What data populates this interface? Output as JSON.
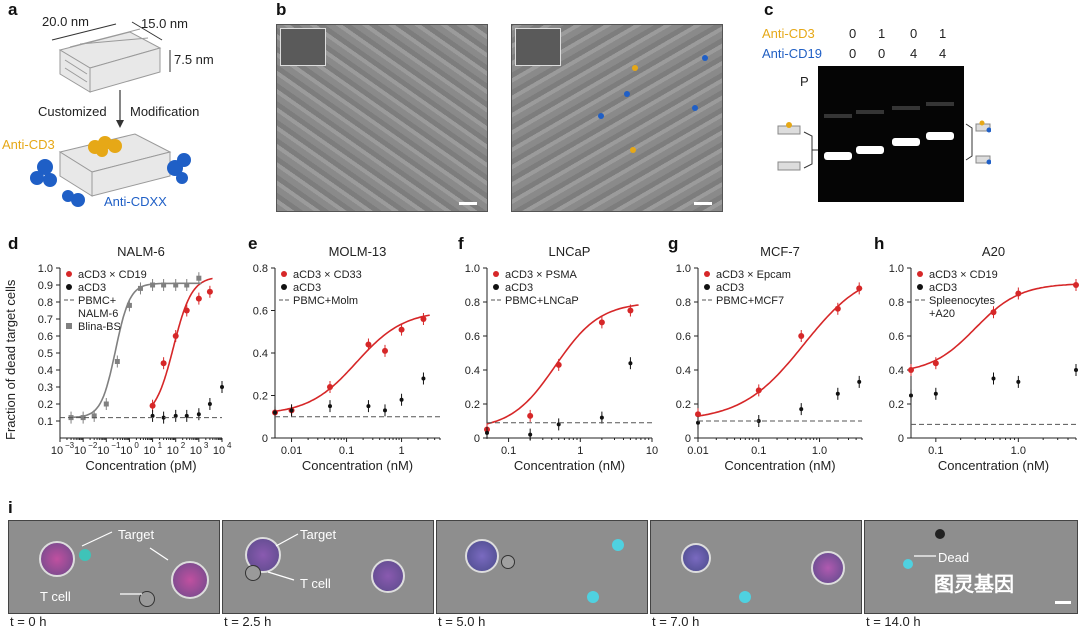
{
  "panel_labels": [
    "a",
    "b",
    "c",
    "d",
    "e",
    "f",
    "g",
    "h",
    "i"
  ],
  "panel_a": {
    "dim1": "20.0 nm",
    "dim2": "15.0 nm",
    "dim3": "7.5 nm",
    "step_left": "Customized",
    "step_right": "Modification",
    "anti_cd3": "Anti-CD3",
    "anti_cdxx": "Anti-CDXX",
    "colors": {
      "cd3": "#e6a817",
      "cdxx": "#1f5fc6"
    }
  },
  "panel_c": {
    "row1_label": "Anti-CD3",
    "row1_values": [
      "0",
      "1",
      "0",
      "1"
    ],
    "row2_label": "Anti-CD19",
    "row2_values": [
      "0",
      "0",
      "4",
      "4"
    ],
    "well_label": "P"
  },
  "y_axis_label": "Fraction of dead target cells",
  "chart_data": [
    {
      "type": "line",
      "title": "NALM-6",
      "xlabel": "Concentration (pM)",
      "xscale": "log",
      "xlim": [
        0.001,
        10000
      ],
      "ylim": [
        0,
        1.0
      ],
      "xticks": [
        "10",
        "10",
        "10",
        "10",
        "10",
        "10",
        "10",
        "10"
      ],
      "xtick_exps": [
        "−3",
        "−2",
        "−1",
        "0",
        "1",
        "2",
        "3",
        "4"
      ],
      "yticks": [
        "0.1",
        "0.2",
        "0.3",
        "0.4",
        "0.5",
        "0.6",
        "0.7",
        "0.8",
        "0.9",
        "1.0"
      ],
      "legend": [
        "aCD3 × CD19",
        "aCD3",
        "PBMC+",
        "NALM-6",
        "Blina-BS"
      ],
      "series": [
        {
          "name": "aCD3 × CD19",
          "color": "#d62728",
          "x": [
            10,
            30,
            100,
            300,
            1000,
            3000
          ],
          "y": [
            0.19,
            0.44,
            0.6,
            0.75,
            0.82,
            0.86
          ],
          "fit": {
            "bottom": 0.12,
            "top": 0.95,
            "ec50": 80,
            "hill": 1.1
          }
        },
        {
          "name": "aCD3",
          "color": "#111111",
          "x": [
            10,
            30,
            100,
            300,
            1000,
            3000,
            10000
          ],
          "y": [
            0.13,
            0.12,
            0.13,
            0.13,
            0.14,
            0.2,
            0.3
          ]
        },
        {
          "name": "Blina-BS",
          "color": "#808080",
          "x": [
            0.003,
            0.01,
            0.03,
            0.1,
            0.3,
            1,
            3,
            10,
            30,
            100,
            300,
            1000
          ],
          "y": [
            0.12,
            0.12,
            0.13,
            0.2,
            0.45,
            0.78,
            0.88,
            0.9,
            0.9,
            0.9,
            0.9,
            0.94
          ],
          "fit": {
            "bottom": 0.12,
            "top": 0.91,
            "ec50": 0.25,
            "hill": 1.4
          }
        },
        {
          "name": "PBMC+ NALM-6",
          "color": "#555555",
          "hline": 0.12
        }
      ]
    },
    {
      "type": "line",
      "title": "MOLM-13",
      "xlabel": "Concentration (nM)",
      "xscale": "log",
      "xlim": [
        0.005,
        5
      ],
      "ylim": [
        0,
        0.8
      ],
      "xticks": [
        "0.01",
        "0.1",
        "1"
      ],
      "yticks": [
        "0",
        "0.2",
        "0.4",
        "0.6",
        "0.8"
      ],
      "legend": [
        "aCD3 × CD33",
        "aCD3",
        "PBMC+Molm"
      ],
      "series": [
        {
          "name": "aCD3 × CD33",
          "color": "#d62728",
          "x": [
            0.005,
            0.01,
            0.05,
            0.25,
            0.5,
            1,
            2.5
          ],
          "y": [
            0.12,
            0.13,
            0.24,
            0.44,
            0.41,
            0.51,
            0.56
          ],
          "fit": {
            "bottom": 0.11,
            "top": 0.6,
            "ec50": 0.15,
            "hill": 1.0
          }
        },
        {
          "name": "aCD3",
          "color": "#111111",
          "x": [
            0.005,
            0.01,
            0.05,
            0.25,
            0.5,
            1,
            2.5
          ],
          "y": [
            0.12,
            0.13,
            0.15,
            0.15,
            0.13,
            0.18,
            0.28
          ]
        },
        {
          "name": "PBMC+Molm",
          "color": "#555555",
          "hline": 0.1
        }
      ]
    },
    {
      "type": "line",
      "title": "LNCaP",
      "xlabel": "Concentration (nM)",
      "xscale": "log",
      "xlim": [
        0.05,
        10
      ],
      "ylim": [
        0,
        1.0
      ],
      "xticks": [
        "0.1",
        "1",
        "10"
      ],
      "yticks": [
        "0",
        "0.2",
        "0.4",
        "0.6",
        "0.8",
        "1.0"
      ],
      "legend": [
        "aCD3 × PSMA",
        "aCD3",
        "PBMC+LNCaP"
      ],
      "series": [
        {
          "name": "aCD3 × PSMA",
          "color": "#d62728",
          "x": [
            0.05,
            0.2,
            0.5,
            2,
            5
          ],
          "y": [
            0.05,
            0.13,
            0.43,
            0.68,
            0.75
          ],
          "fit": {
            "bottom": 0.05,
            "top": 0.8,
            "ec50": 0.45,
            "hill": 1.4
          }
        },
        {
          "name": "aCD3",
          "color": "#111111",
          "x": [
            0.05,
            0.2,
            0.5,
            2,
            5
          ],
          "y": [
            0.03,
            0.02,
            0.08,
            0.12,
            0.44
          ]
        },
        {
          "name": "PBMC+LNCaP",
          "color": "#555555",
          "hline": 0.09
        }
      ]
    },
    {
      "type": "line",
      "title": "MCF-7",
      "xlabel": "Concentration (nM)",
      "xscale": "log",
      "xlim": [
        0.01,
        5
      ],
      "ylim": [
        0,
        1.0
      ],
      "xticks": [
        "0.01",
        "0.1",
        "1.0"
      ],
      "yticks": [
        "0",
        "0.2",
        "0.4",
        "0.6",
        "0.8",
        "1.0"
      ],
      "legend": [
        "aCD3 × Epcam",
        "aCD3",
        "PBMC+MCF7"
      ],
      "series": [
        {
          "name": "aCD3 × Epcam",
          "color": "#d62728",
          "x": [
            0.01,
            0.1,
            0.5,
            2,
            4.5
          ],
          "y": [
            0.14,
            0.28,
            0.6,
            0.76,
            0.88
          ],
          "fit": {
            "bottom": 0.1,
            "top": 1.0,
            "ec50": 0.55,
            "hill": 0.85
          }
        },
        {
          "name": "aCD3",
          "color": "#111111",
          "x": [
            0.01,
            0.1,
            0.5,
            2,
            4.5
          ],
          "y": [
            0.09,
            0.1,
            0.17,
            0.26,
            0.33
          ]
        },
        {
          "name": "PBMC+MCF7",
          "color": "#555555",
          "hline": 0.1
        }
      ]
    },
    {
      "type": "line",
      "title": "A20",
      "xlabel": "Concentration (nM)",
      "xscale": "log",
      "xlim": [
        0.05,
        5
      ],
      "ylim": [
        0,
        1.0
      ],
      "xticks": [
        "0.1",
        "1.0"
      ],
      "yticks": [
        "0",
        "0.2",
        "0.4",
        "0.6",
        "0.8",
        "1.0"
      ],
      "legend": [
        "aCD3 × CD19",
        "aCD3",
        "Spleenocytes",
        "+A20"
      ],
      "series": [
        {
          "name": "aCD3 × CD19",
          "color": "#d62728",
          "x": [
            0.05,
            0.1,
            0.5,
            1,
            5
          ],
          "y": [
            0.4,
            0.44,
            0.74,
            0.85,
            0.9
          ],
          "fit": {
            "bottom": 0.38,
            "top": 0.91,
            "ec50": 0.3,
            "hill": 1.6
          }
        },
        {
          "name": "aCD3",
          "color": "#111111",
          "x": [
            0.05,
            0.1,
            0.5,
            1,
            5
          ],
          "y": [
            0.25,
            0.26,
            0.35,
            0.33,
            0.4
          ]
        },
        {
          "name": "Spleenocytes +A20",
          "color": "#555555",
          "hline": 0.08
        }
      ]
    }
  ],
  "panel_i": {
    "labels": [
      "Target",
      "T cell",
      "Target",
      "T cell",
      "Dead"
    ],
    "timepoints": [
      "t = 0 h",
      "t = 2.5 h",
      "t = 5.0 h",
      "t = 7.0 h",
      "t = 14.0 h"
    ],
    "watermark": "图灵基因"
  }
}
